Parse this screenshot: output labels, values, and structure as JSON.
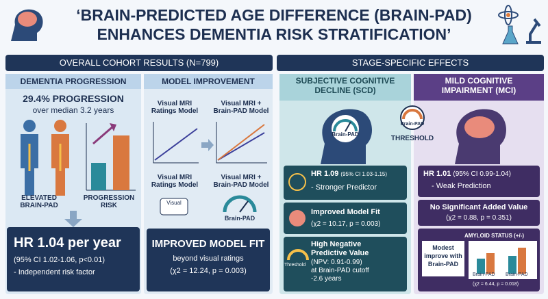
{
  "header": {
    "title_lines": [
      "‘BRAIN-PREDICTED AGE DIFFERENCE (BRAIN-PAD)",
      "ENHANCES DEMENTIA RISK STRATIFICATION’"
    ]
  },
  "overall": {
    "heading": "OVERALL COHORT RESULTS (N=799)",
    "progression": {
      "heading": "DEMENTIA PROGRESSION",
      "stat": "29.4% PROGRESSION",
      "stat_sub": "over median 3.2 years",
      "label_left": [
        "ELEVATED",
        "BRAIN-PAD"
      ],
      "label_right": [
        "PROGRESSION",
        "RISK"
      ],
      "hr": "HR 1.04 per year",
      "ci": "(95% CI 1.02-1.06, p<0.01)",
      "note": "- Independent risk factor"
    },
    "model": {
      "heading": "MODEL IMPROVEMENT",
      "left_label": [
        "Visual MRI",
        "Ratings Model"
      ],
      "right_label": [
        "Visual MRI +",
        "Brain-PAD Model"
      ],
      "left_label2": [
        "Visual MRI",
        "Ratings Model"
      ],
      "right_label2": [
        "Visual MRI +",
        "Brain-PAD Model"
      ],
      "gauge_left": "Visual",
      "gauge_right": "Brain-PAD",
      "result": "IMPROVED MODEL FIT",
      "result_sub": "beyond visual ratings",
      "result_stat": "(χ2 = 12.24, p = 0.003)"
    }
  },
  "stage": {
    "heading": "STAGE-SPECIFIC EFFECTS",
    "threshold_gauge": "Brain-PAD",
    "threshold": "THRESHOLD",
    "scd": {
      "heading": [
        "SUBJECTIVE COGNITIVE",
        "DECLINE (SCD)"
      ],
      "head_label": "Brain-PAD",
      "hr": "HR 1.09",
      "hr_ci": "(95% CI 1.03-1.15)",
      "hr_note": "- Stronger Predictor",
      "fit": "Improved Model Fit",
      "fit_stat": "(χ2 = 10.17, p = 0.003)",
      "npv_icon": "Threshold",
      "npv": [
        "High Negative",
        "Predictive Value"
      ],
      "npv_detail": [
        "(NPV: 0.91-0.99)",
        "at Brain-PAD cutoff",
        "-2.6 years"
      ]
    },
    "mci": {
      "heading": [
        "MILD COGNITIVE",
        "IMPAIRMENT (MCI)"
      ],
      "hr": "HR 1.01",
      "hr_ci": "(95% CI 0.99-1.04)",
      "hr_note": "- Weak Prediction",
      "added": "No Significant Added Value",
      "added_stat": "(χ2 = 0.88, p = 0.351)",
      "amyloid": "AMYLOID STATUS (+/-)",
      "amyloid_note": [
        "Modest",
        "improve with",
        "Brain-PAD"
      ],
      "bar_labels": [
        "Brain-PAD",
        "Brain-PAD"
      ],
      "amyloid_stat": "(χ2 = 6.44, p = 0.018)"
    }
  }
}
